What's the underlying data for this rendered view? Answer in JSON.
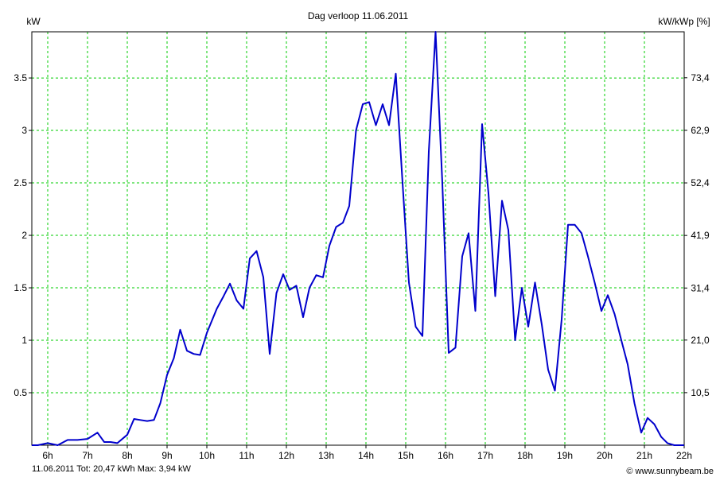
{
  "chart_data": {
    "type": "line",
    "title": "Dag  verloop 11.06.2011",
    "ylabel_left": "kW",
    "ylabel_right": "kW/kWp [%]",
    "x_unit": "hour",
    "xlim": [
      5.6,
      22
    ],
    "ylim": [
      0,
      3.94
    ],
    "x_ticks": [
      6,
      7,
      8,
      9,
      10,
      11,
      12,
      13,
      14,
      15,
      16,
      17,
      18,
      19,
      20,
      21,
      22
    ],
    "x_tick_labels": [
      "6h",
      "7h",
      "8h",
      "9h",
      "10h",
      "11h",
      "12h",
      "13h",
      "14h",
      "15h",
      "16h",
      "17h",
      "18h",
      "19h",
      "20h",
      "21h",
      "22h"
    ],
    "y_ticks_left": [
      0.5,
      1,
      1.5,
      2,
      2.5,
      3,
      3.5
    ],
    "y_tick_labels_left": [
      "0.5",
      "1",
      "1.5",
      "2",
      "2.5",
      "3",
      "3.5"
    ],
    "y_ticks_right": [
      10.5,
      21.0,
      31.4,
      41.9,
      52.4,
      62.9,
      73.4
    ],
    "y_tick_labels_right": [
      "10,5",
      "21,0",
      "31,4",
      "41,9",
      "52,4",
      "62,9",
      "73,4"
    ],
    "right_axis_scale": 20.96,
    "grid": true,
    "grid_color": "#00cc00",
    "line_color": "#0000cc",
    "series": [
      {
        "x": [
          5.6,
          5.75,
          6.0,
          6.25,
          6.5,
          6.75,
          7.0,
          7.25,
          7.42,
          7.58,
          7.75,
          8.0,
          8.17,
          8.33,
          8.5,
          8.67,
          8.83,
          9.0,
          9.17,
          9.33,
          9.5,
          9.67,
          9.83,
          10.0,
          10.25,
          10.42,
          10.58,
          10.75,
          10.92,
          11.08,
          11.25,
          11.42,
          11.58,
          11.75,
          11.92,
          12.08,
          12.25,
          12.42,
          12.58,
          12.75,
          12.92,
          13.08,
          13.25,
          13.42,
          13.58,
          13.75,
          13.92,
          14.08,
          14.25,
          14.42,
          14.58,
          14.75,
          14.92,
          15.08,
          15.25,
          15.42,
          15.58,
          15.75,
          15.92,
          16.08,
          16.25,
          16.42,
          16.58,
          16.75,
          16.92,
          17.08,
          17.25,
          17.42,
          17.58,
          17.75,
          17.92,
          18.08,
          18.25,
          18.42,
          18.58,
          18.75,
          18.92,
          19.08,
          19.25,
          19.42,
          19.58,
          19.75,
          19.92,
          20.08,
          20.25,
          20.42,
          20.58,
          20.75,
          20.92,
          21.08,
          21.25,
          21.42,
          21.58,
          21.75,
          22.0
        ],
        "y": [
          0.0,
          0.0,
          0.02,
          0.0,
          0.05,
          0.05,
          0.06,
          0.12,
          0.03,
          0.03,
          0.02,
          0.1,
          0.25,
          0.24,
          0.23,
          0.24,
          0.4,
          0.67,
          0.83,
          1.1,
          0.9,
          0.87,
          0.86,
          1.07,
          1.3,
          1.42,
          1.54,
          1.38,
          1.3,
          1.78,
          1.85,
          1.6,
          0.87,
          1.45,
          1.63,
          1.48,
          1.52,
          1.22,
          1.5,
          1.62,
          1.6,
          1.9,
          2.08,
          2.12,
          2.28,
          3.0,
          3.25,
          3.27,
          3.05,
          3.25,
          3.05,
          3.54,
          2.5,
          1.55,
          1.13,
          1.04,
          2.8,
          3.94,
          2.5,
          0.88,
          0.93,
          1.8,
          2.02,
          1.28,
          3.06,
          2.4,
          1.42,
          2.33,
          2.05,
          1.0,
          1.5,
          1.13,
          1.55,
          1.15,
          0.72,
          0.52,
          1.2,
          2.1,
          2.1,
          2.02,
          1.8,
          1.55,
          1.28,
          1.43,
          1.25,
          1.0,
          0.77,
          0.4,
          0.12,
          0.26,
          0.2,
          0.08,
          0.02,
          0.0,
          0.0
        ]
      }
    ]
  },
  "footer": {
    "left": "11.06.2011 Tot: 20,47 kWh Max: 3,94 kW",
    "left_color": "#0000cc",
    "right": "© www.sunnybeam.be"
  }
}
